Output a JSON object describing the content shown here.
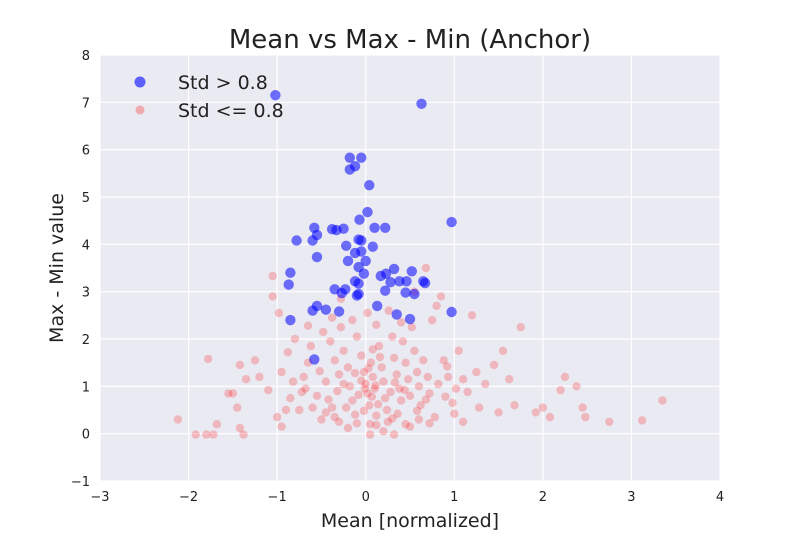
{
  "chart_data": {
    "type": "scatter",
    "title": "Mean vs Max - Min (Anchor)",
    "xlabel": "Mean [normalized]",
    "ylabel": "Max - Min value",
    "xlim": [
      -3,
      4
    ],
    "ylim": [
      -1,
      8
    ],
    "xticks": [
      "−3",
      "−2",
      "−1",
      "0",
      "1",
      "2",
      "3",
      "4"
    ],
    "yticks": [
      "−1",
      "0",
      "1",
      "2",
      "3",
      "4",
      "5",
      "6",
      "7",
      "8"
    ],
    "grid": true,
    "legend_position": "top-left",
    "series": [
      {
        "name": "Std > 0.8",
        "color": "#0000ff",
        "opacity": 0.55,
        "points": [
          [
            -1.02,
            7.15
          ],
          [
            0.63,
            6.97
          ],
          [
            -0.18,
            5.83
          ],
          [
            -0.05,
            5.83
          ],
          [
            -0.12,
            5.65
          ],
          [
            -0.18,
            5.58
          ],
          [
            0.04,
            5.25
          ],
          [
            0.02,
            4.68
          ],
          [
            -0.07,
            4.52
          ],
          [
            0.97,
            4.47
          ],
          [
            -0.58,
            4.35
          ],
          [
            -0.38,
            4.32
          ],
          [
            -0.25,
            4.33
          ],
          [
            0.1,
            4.35
          ],
          [
            0.22,
            4.35
          ],
          [
            -0.33,
            4.3
          ],
          [
            -0.55,
            4.2
          ],
          [
            -0.78,
            4.08
          ],
          [
            -0.6,
            4.08
          ],
          [
            -0.08,
            4.1
          ],
          [
            -0.05,
            4.08
          ],
          [
            -0.22,
            3.97
          ],
          [
            0.08,
            3.95
          ],
          [
            -0.12,
            3.82
          ],
          [
            -0.05,
            3.85
          ],
          [
            -0.55,
            3.73
          ],
          [
            -0.2,
            3.65
          ],
          [
            0.0,
            3.65
          ],
          [
            -0.08,
            3.52
          ],
          [
            -0.85,
            3.4
          ],
          [
            -0.02,
            3.38
          ],
          [
            0.32,
            3.48
          ],
          [
            0.52,
            3.43
          ],
          [
            0.17,
            3.33
          ],
          [
            0.23,
            3.38
          ],
          [
            0.28,
            3.2
          ],
          [
            0.38,
            3.22
          ],
          [
            0.46,
            3.22
          ],
          [
            0.65,
            3.22
          ],
          [
            0.67,
            3.18
          ],
          [
            -0.12,
            3.22
          ],
          [
            -0.08,
            3.17
          ],
          [
            -0.87,
            3.15
          ],
          [
            -0.35,
            3.05
          ],
          [
            -0.23,
            3.05
          ],
          [
            -0.27,
            2.97
          ],
          [
            -0.08,
            2.95
          ],
          [
            -0.1,
            2.92
          ],
          [
            0.22,
            3.02
          ],
          [
            0.45,
            2.98
          ],
          [
            0.55,
            2.95
          ],
          [
            -0.55,
            2.7
          ],
          [
            -0.45,
            2.62
          ],
          [
            -0.6,
            2.6
          ],
          [
            0.13,
            2.7
          ],
          [
            -0.3,
            2.58
          ],
          [
            0.35,
            2.52
          ],
          [
            0.97,
            2.57
          ],
          [
            -0.85,
            2.4
          ],
          [
            0.5,
            2.42
          ],
          [
            -0.58,
            1.57
          ]
        ]
      },
      {
        "name": "Std <= 0.8",
        "color": "#ff0000",
        "opacity": 0.22,
        "points": [
          [
            -2.12,
            0.3
          ],
          [
            -1.92,
            -0.02
          ],
          [
            -1.8,
            -0.02
          ],
          [
            -1.72,
            -0.02
          ],
          [
            -1.68,
            0.2
          ],
          [
            -1.55,
            0.85
          ],
          [
            -1.42,
            0.12
          ],
          [
            -1.38,
            -0.02
          ],
          [
            -1.78,
            1.58
          ],
          [
            -1.42,
            1.45
          ],
          [
            -1.35,
            1.15
          ],
          [
            -1.5,
            0.85
          ],
          [
            -1.45,
            0.55
          ],
          [
            -1.05,
            3.33
          ],
          [
            -1.05,
            2.9
          ],
          [
            -0.98,
            2.55
          ],
          [
            -1.25,
            1.55
          ],
          [
            -1.2,
            1.2
          ],
          [
            -1.1,
            0.92
          ],
          [
            -1.0,
            0.35
          ],
          [
            -0.95,
            0.15
          ],
          [
            -0.88,
            1.72
          ],
          [
            -0.82,
            1.1
          ],
          [
            -0.9,
            0.5
          ],
          [
            -0.75,
            0.5
          ],
          [
            -0.7,
            1.2
          ],
          [
            -0.72,
            0.88
          ],
          [
            -0.8,
            2.0
          ],
          [
            1.75,
            2.25
          ],
          [
            1.55,
            1.75
          ],
          [
            1.45,
            1.45
          ],
          [
            1.62,
            1.15
          ],
          [
            1.35,
            1.05
          ],
          [
            1.28,
            0.55
          ],
          [
            1.5,
            0.45
          ],
          [
            1.68,
            0.6
          ],
          [
            1.92,
            0.45
          ],
          [
            2.0,
            0.55
          ],
          [
            2.08,
            0.35
          ],
          [
            2.2,
            0.92
          ],
          [
            2.25,
            1.2
          ],
          [
            2.38,
            1.0
          ],
          [
            2.45,
            0.55
          ],
          [
            2.48,
            0.35
          ],
          [
            2.75,
            0.25
          ],
          [
            3.12,
            0.28
          ],
          [
            3.35,
            0.7
          ],
          [
            1.2,
            2.5
          ],
          [
            0.85,
            2.9
          ],
          [
            0.8,
            2.7
          ],
          [
            0.68,
            3.5
          ],
          [
            0.55,
            3.0
          ],
          [
            0.75,
            2.4
          ],
          [
            1.05,
            1.75
          ],
          [
            1.1,
            1.15
          ],
          [
            0.98,
            0.65
          ],
          [
            1.0,
            0.42
          ],
          [
            1.1,
            0.25
          ],
          [
            1.15,
            0.88
          ],
          [
            1.25,
            1.3
          ],
          [
            0.93,
            1.2
          ],
          [
            0.88,
            1.55
          ],
          [
            0.78,
            0.35
          ],
          [
            0.05,
            -0.02
          ],
          [
            0.32,
            -0.02
          ],
          [
            -0.5,
            0.3
          ],
          [
            -0.3,
            0.25
          ],
          [
            -0.1,
            0.22
          ],
          [
            0.12,
            0.18
          ],
          [
            0.25,
            0.25
          ],
          [
            0.45,
            0.2
          ],
          [
            0.6,
            0.3
          ],
          [
            0.72,
            0.22
          ],
          [
            -0.65,
            1.5
          ],
          [
            -0.62,
            1.85
          ],
          [
            -0.65,
            2.28
          ],
          [
            -0.48,
            2.15
          ],
          [
            -0.45,
            1.1
          ],
          [
            -0.55,
            0.8
          ],
          [
            -0.38,
            0.55
          ],
          [
            -0.4,
            1.95
          ],
          [
            -0.38,
            2.45
          ],
          [
            -0.28,
            2.25
          ],
          [
            -0.25,
            1.75
          ],
          [
            -0.2,
            1.4
          ],
          [
            -0.18,
            1.0
          ],
          [
            -0.15,
            0.7
          ],
          [
            -0.12,
            0.4
          ],
          [
            -0.1,
            2.05
          ],
          [
            -0.05,
            1.65
          ],
          [
            -0.02,
            1.3
          ],
          [
            0.0,
            1.05
          ],
          [
            0.02,
            0.85
          ],
          [
            0.04,
            0.6
          ],
          [
            0.06,
            1.5
          ],
          [
            0.08,
            1.2
          ],
          [
            0.1,
            0.95
          ],
          [
            0.12,
            2.3
          ],
          [
            0.15,
            1.85
          ],
          [
            0.18,
            1.4
          ],
          [
            0.2,
            1.1
          ],
          [
            0.22,
            0.75
          ],
          [
            0.24,
            0.5
          ],
          [
            0.26,
            2.6
          ],
          [
            0.3,
            2.05
          ],
          [
            0.32,
            1.6
          ],
          [
            0.35,
            1.25
          ],
          [
            0.38,
            0.95
          ],
          [
            0.4,
            0.7
          ],
          [
            0.42,
            1.95
          ],
          [
            0.45,
            1.5
          ],
          [
            0.48,
            1.15
          ],
          [
            0.5,
            0.8
          ],
          [
            0.52,
            2.25
          ],
          [
            0.55,
            1.75
          ],
          [
            0.58,
            1.3
          ],
          [
            0.6,
            1.0
          ],
          [
            0.62,
            0.6
          ],
          [
            0.65,
            1.55
          ],
          [
            0.7,
            1.2
          ],
          [
            0.72,
            0.85
          ],
          [
            -0.3,
            1.25
          ],
          [
            -0.32,
            0.9
          ],
          [
            -0.35,
            1.55
          ],
          [
            -0.22,
            0.55
          ],
          [
            -0.08,
            0.82
          ],
          [
            0.14,
            0.62
          ],
          [
            0.28,
            0.88
          ],
          [
            0.36,
            0.42
          ],
          [
            -0.05,
            1.12
          ],
          [
            -0.01,
            0.95
          ],
          [
            0.03,
            1.38
          ],
          [
            0.07,
            0.78
          ],
          [
            0.11,
            1.02
          ],
          [
            -0.12,
            1.28
          ],
          [
            0.16,
            1.62
          ],
          [
            -0.25,
            1.05
          ],
          [
            0.33,
            1.08
          ],
          [
            0.44,
            0.92
          ],
          [
            -0.42,
            0.72
          ],
          [
            0.58,
            0.48
          ],
          [
            0.68,
            0.72
          ],
          [
            0.82,
            1.05
          ],
          [
            0.9,
            0.78
          ],
          [
            -0.6,
            0.55
          ],
          [
            -0.68,
            0.95
          ],
          [
            -0.52,
            1.32
          ],
          [
            -0.28,
            2.85
          ],
          [
            0.02,
            2.55
          ],
          [
            -0.15,
            2.4
          ],
          [
            0.4,
            2.35
          ],
          [
            0.08,
            1.78
          ],
          [
            -0.45,
            0.45
          ],
          [
            0.92,
            1.42
          ],
          [
            1.02,
            0.95
          ],
          [
            -0.85,
            0.75
          ],
          [
            -0.95,
            1.3
          ],
          [
            0.5,
            0.15
          ],
          [
            -0.2,
            0.12
          ],
          [
            0.2,
            0.05
          ],
          [
            -0.02,
            0.48
          ],
          [
            0.3,
            0.32
          ],
          [
            -0.35,
            0.35
          ],
          [
            0.12,
            0.38
          ],
          [
            0.05,
            0.2
          ]
        ]
      }
    ]
  }
}
